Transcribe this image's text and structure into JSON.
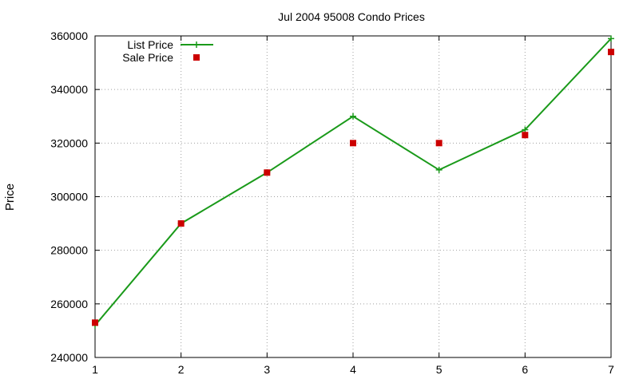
{
  "chart_data": {
    "type": "line",
    "title": "Jul 2004 95008 Condo Prices",
    "xlabel": "",
    "ylabel": "Price",
    "xlim": [
      1,
      7
    ],
    "ylim": [
      240000,
      360000
    ],
    "x_ticks": [
      "1",
      "2",
      "3",
      "4",
      "5",
      "6",
      "7"
    ],
    "y_ticks": [
      "240000",
      "260000",
      "280000",
      "300000",
      "320000",
      "340000",
      "360000"
    ],
    "grid": true,
    "legend_position": "top-left",
    "x": [
      1,
      2,
      3,
      4,
      5,
      6,
      7
    ],
    "series": [
      {
        "name": "List Price",
        "style": "line-with-plus-markers",
        "color": "#1a9a1a",
        "values": [
          252000,
          290000,
          309000,
          330000,
          310000,
          325000,
          359000
        ]
      },
      {
        "name": "Sale Price",
        "style": "square-markers",
        "color": "#cc0000",
        "values": [
          253000,
          290000,
          309000,
          320000,
          320000,
          323000,
          354000
        ]
      }
    ]
  }
}
